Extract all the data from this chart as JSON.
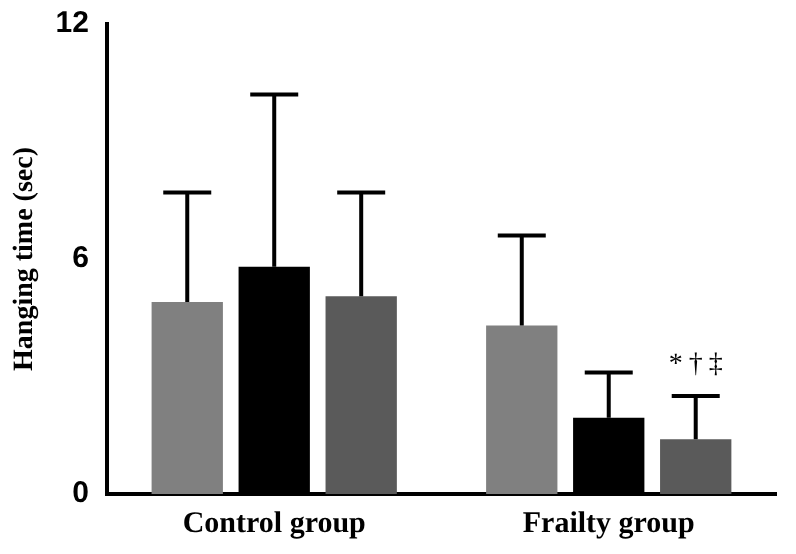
{
  "chart_data": {
    "type": "bar",
    "ylabel": "Hanging time (sec)",
    "categories": [
      "Control group",
      "Frailty group"
    ],
    "series": [
      {
        "color": "#808080",
        "values": [
          4.9,
          4.3
        ],
        "errors": [
          [
            4.9,
            7.7
          ],
          [
            4.3,
            6.6
          ]
        ]
      },
      {
        "color": "#000000",
        "values": [
          5.8,
          1.95
        ],
        "errors": [
          [
            5.8,
            10.2
          ],
          [
            1.95,
            3.1
          ]
        ]
      },
      {
        "color": "#5a5a5a",
        "values": [
          5.05,
          1.4
        ],
        "errors": [
          [
            5.05,
            7.7
          ],
          [
            1.4,
            2.5
          ]
        ]
      }
    ],
    "ylim": [
      0,
      12
    ],
    "yticks": [
      0,
      6,
      12
    ],
    "grid": false,
    "legend": false,
    "annotations": [
      "*",
      "†",
      "‡"
    ]
  }
}
